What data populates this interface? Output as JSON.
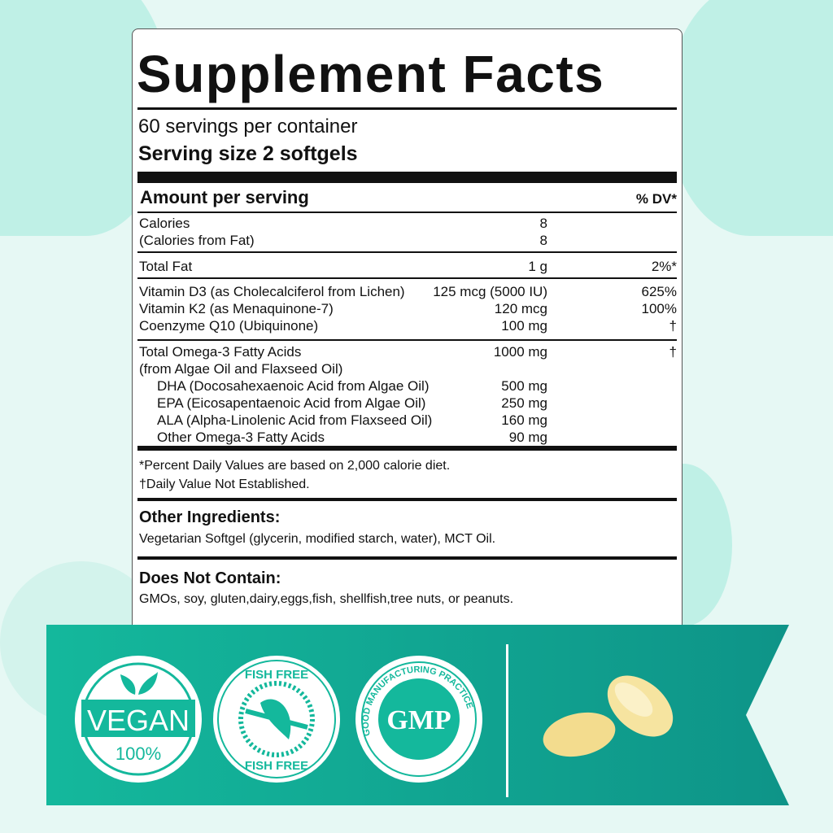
{
  "title": "Supplement Facts",
  "servings_per_container": "60 servings per container",
  "serving_size": "Serving size  2 softgels",
  "amount_header": "Amount per serving",
  "dv_header": "% DV*",
  "rows": [
    {
      "name": "Calories",
      "amount": "8",
      "dv": ""
    },
    {
      "name": "(Calories from Fat)",
      "amount": "8",
      "dv": ""
    },
    {
      "name": "Total Fat",
      "amount": "1 g",
      "dv": "2%*"
    },
    {
      "name": "Vitamin D3 (as Cholecalciferol from Lichen)",
      "amount": "125 mcg (5000 IU)",
      "dv": "625%"
    },
    {
      "name": "Vitamin K2 (as Menaquinone-7)",
      "amount": "120 mcg",
      "dv": "100%"
    },
    {
      "name": "Coenzyme Q10 (Ubiquinone)",
      "amount": "100 mg",
      "dv": "†"
    },
    {
      "name": "Total Omega-3 Fatty Acids",
      "amount": "1000 mg",
      "dv": "†"
    },
    {
      "name": "(from Algae Oil and Flaxseed Oil)",
      "amount": "",
      "dv": ""
    },
    {
      "name": "DHA (Docosahexaenoic Acid from Algae Oil)",
      "amount": "500 mg",
      "dv": ""
    },
    {
      "name": "EPA (Eicosapentaenoic Acid from Algae Oil)",
      "amount": "250 mg",
      "dv": ""
    },
    {
      "name": "ALA (Alpha-Linolenic Acid from Flaxseed Oil)",
      "amount": "160 mg",
      "dv": ""
    },
    {
      "name": "Other Omega-3 Fatty Acids",
      "amount": "90 mg",
      "dv": ""
    }
  ],
  "footnote1": "*Percent Daily Values are based on 2,000 calorie diet.",
  "footnote2": "†Daily Value Not Established.",
  "other_ingredients_title": "Other Ingredients:",
  "other_ingredients": "Vegetarian Softgel (glycerin, modified starch, water), MCT Oil.",
  "does_not_contain_title": "Does Not Contain:",
  "does_not_contain": "GMOs, soy, gluten,dairy,eggs,fish, shellfish,tree nuts, or peanuts.",
  "badges": {
    "vegan": "VEGAN",
    "vegan_pct": "100%",
    "fish_free": "FISH FREE",
    "gmp": "GMP",
    "gmp_ring": "GOOD MANUFACTURING PRACTICE"
  },
  "colors": {
    "teal": "#12b39a",
    "teal_dark": "#0e9488",
    "background": "#e6f8f4"
  }
}
